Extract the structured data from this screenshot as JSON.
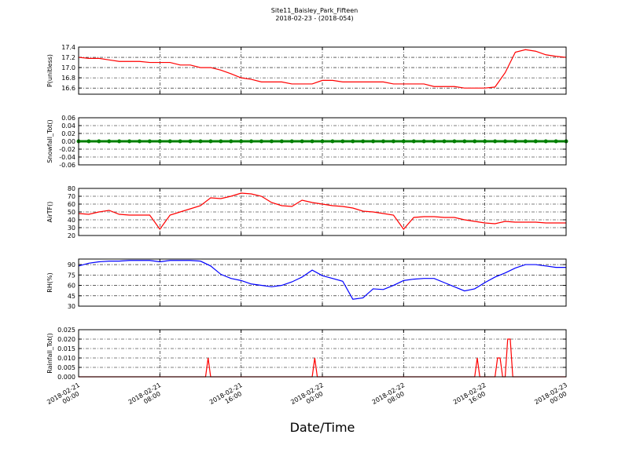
{
  "title": "Site11_Baisley_Park_Fifteen",
  "subtitle": "2018-02-23 - (2018-054)",
  "xlabel": "Date/Time",
  "chart_data": [
    {
      "type": "line",
      "ylabel": "P(unitless)",
      "color": "#ff0000",
      "xlim": [
        "2018-02-21 00:00",
        "2018-02-23 00:00"
      ],
      "xticks": [
        "2018-02-21 00:00",
        "2018-02-21 08:00",
        "2018-02-21 16:00",
        "2018-02-22 00:00",
        "2018-02-22 08:00",
        "2018-02-22 16:00",
        "2018-02-23 00:00"
      ],
      "ylim": [
        16.48,
        17.4
      ],
      "yticks": [
        16.6,
        16.8,
        {
          "value": 17,
          "label": "17.0"
        },
        17.2,
        17.4
      ],
      "grid": true,
      "x": [
        "2018-02-21 00:00",
        "2018-02-21 01:00",
        "2018-02-21 02:00",
        "2018-02-21 03:00",
        "2018-02-21 04:00",
        "2018-02-21 05:00",
        "2018-02-21 06:00",
        "2018-02-21 07:00",
        "2018-02-21 08:00",
        "2018-02-21 09:00",
        "2018-02-21 10:00",
        "2018-02-21 11:00",
        "2018-02-21 12:00",
        "2018-02-21 13:00",
        "2018-02-21 14:00",
        "2018-02-21 15:00",
        "2018-02-21 16:00",
        "2018-02-21 17:00",
        "2018-02-21 18:00",
        "2018-02-21 19:00",
        "2018-02-21 20:00",
        "2018-02-21 21:00",
        "2018-02-21 22:00",
        "2018-02-21 23:00",
        "2018-02-22 00:00",
        "2018-02-22 01:00",
        "2018-02-22 02:00",
        "2018-02-22 03:00",
        "2018-02-22 04:00",
        "2018-02-22 05:00",
        "2018-02-22 06:00",
        "2018-02-22 07:00",
        "2018-02-22 08:00",
        "2018-02-22 09:00",
        "2018-02-22 10:00",
        "2018-02-22 11:00",
        "2018-02-22 12:00",
        "2018-02-22 13:00",
        "2018-02-22 14:00",
        "2018-02-22 15:00",
        "2018-02-22 16:00",
        "2018-02-22 17:00",
        "2018-02-22 18:00",
        "2018-02-22 19:00",
        "2018-02-22 20:00",
        "2018-02-22 21:00",
        "2018-02-22 22:00",
        "2018-02-22 23:00",
        "2018-02-23 00:00"
      ],
      "values": [
        17.2,
        17.18,
        17.18,
        17.15,
        17.12,
        17.12,
        17.12,
        17.1,
        17.1,
        17.1,
        17.05,
        17.05,
        17.0,
        17.0,
        16.95,
        16.88,
        16.8,
        16.77,
        16.72,
        16.72,
        16.72,
        16.68,
        16.68,
        16.68,
        16.75,
        16.75,
        16.72,
        16.72,
        16.72,
        16.72,
        16.72,
        16.68,
        16.68,
        16.68,
        16.68,
        16.63,
        16.63,
        16.63,
        16.6,
        16.6,
        16.6,
        16.62,
        16.9,
        17.3,
        17.35,
        17.32,
        17.25,
        17.22,
        17.2
      ]
    },
    {
      "type": "line",
      "ylabel": "Snowfall_Tot()",
      "color": "#008000",
      "marker": true,
      "xlim": [
        "2018-02-21 00:00",
        "2018-02-23 00:00"
      ],
      "xticks": [
        "2018-02-21 00:00",
        "2018-02-21 08:00",
        "2018-02-21 16:00",
        "2018-02-22 00:00",
        "2018-02-22 08:00",
        "2018-02-22 16:00",
        "2018-02-23 00:00"
      ],
      "ylim": [
        -0.06,
        0.06
      ],
      "yticks": [
        -0.06,
        -0.04,
        -0.02,
        {
          "value": 0,
          "label": "0.00"
        },
        0.02,
        0.04,
        0.06
      ],
      "grid": true,
      "x": [
        "2018-02-21 00:00",
        "2018-02-21 01:00",
        "2018-02-21 02:00",
        "2018-02-21 03:00",
        "2018-02-21 04:00",
        "2018-02-21 05:00",
        "2018-02-21 06:00",
        "2018-02-21 07:00",
        "2018-02-21 08:00",
        "2018-02-21 09:00",
        "2018-02-21 10:00",
        "2018-02-21 11:00",
        "2018-02-21 12:00",
        "2018-02-21 13:00",
        "2018-02-21 14:00",
        "2018-02-21 15:00",
        "2018-02-21 16:00",
        "2018-02-21 17:00",
        "2018-02-21 18:00",
        "2018-02-21 19:00",
        "2018-02-21 20:00",
        "2018-02-21 21:00",
        "2018-02-21 22:00",
        "2018-02-21 23:00",
        "2018-02-22 00:00",
        "2018-02-22 01:00",
        "2018-02-22 02:00",
        "2018-02-22 03:00",
        "2018-02-22 04:00",
        "2018-02-22 05:00",
        "2018-02-22 06:00",
        "2018-02-22 07:00",
        "2018-02-22 08:00",
        "2018-02-22 09:00",
        "2018-02-22 10:00",
        "2018-02-22 11:00",
        "2018-02-22 12:00",
        "2018-02-22 13:00",
        "2018-02-22 14:00",
        "2018-02-22 15:00",
        "2018-02-22 16:00",
        "2018-02-22 17:00",
        "2018-02-22 18:00",
        "2018-02-22 19:00",
        "2018-02-22 20:00",
        "2018-02-22 21:00",
        "2018-02-22 22:00",
        "2018-02-22 23:00",
        "2018-02-23 00:00"
      ],
      "values": [
        0,
        0,
        0,
        0,
        0,
        0,
        0,
        0,
        0,
        0,
        0,
        0,
        0,
        0,
        0,
        0,
        0,
        0,
        0,
        0,
        0,
        0,
        0,
        0,
        0,
        0,
        0,
        0,
        0,
        0,
        0,
        0,
        0,
        0,
        0,
        0,
        0,
        0,
        0,
        0,
        0,
        0,
        0,
        0,
        0,
        0,
        0,
        0,
        0
      ]
    },
    {
      "type": "line",
      "ylabel": "AirTF()",
      "color": "#ff0000",
      "xlim": [
        "2018-02-21 00:00",
        "2018-02-23 00:00"
      ],
      "xticks": [
        "2018-02-21 00:00",
        "2018-02-21 08:00",
        "2018-02-21 16:00",
        "2018-02-22 00:00",
        "2018-02-22 08:00",
        "2018-02-22 16:00",
        "2018-02-23 00:00"
      ],
      "ylim": [
        20,
        80
      ],
      "yticks": [
        20,
        30,
        40,
        50,
        60,
        70,
        80
      ],
      "grid": true,
      "x": [
        "2018-02-21 00:00",
        "2018-02-21 01:00",
        "2018-02-21 02:00",
        "2018-02-21 03:00",
        "2018-02-21 04:00",
        "2018-02-21 05:00",
        "2018-02-21 06:00",
        "2018-02-21 07:00",
        "2018-02-21 08:00",
        "2018-02-21 09:00",
        "2018-02-21 10:00",
        "2018-02-21 11:00",
        "2018-02-21 12:00",
        "2018-02-21 13:00",
        "2018-02-21 14:00",
        "2018-02-21 15:00",
        "2018-02-21 16:00",
        "2018-02-21 17:00",
        "2018-02-21 18:00",
        "2018-02-21 19:00",
        "2018-02-21 20:00",
        "2018-02-21 21:00",
        "2018-02-21 22:00",
        "2018-02-21 23:00",
        "2018-02-22 00:00",
        "2018-02-22 01:00",
        "2018-02-22 02:00",
        "2018-02-22 03:00",
        "2018-02-22 04:00",
        "2018-02-22 05:00",
        "2018-02-22 06:00",
        "2018-02-22 07:00",
        "2018-02-22 08:00",
        "2018-02-22 09:00",
        "2018-02-22 10:00",
        "2018-02-22 11:00",
        "2018-02-22 12:00",
        "2018-02-22 13:00",
        "2018-02-22 14:00",
        "2018-02-22 15:00",
        "2018-02-22 16:00",
        "2018-02-22 17:00",
        "2018-02-22 18:00",
        "2018-02-22 19:00",
        "2018-02-22 20:00",
        "2018-02-22 21:00",
        "2018-02-22 22:00",
        "2018-02-22 23:00",
        "2018-02-23 00:00"
      ],
      "values": [
        48,
        47,
        50,
        52,
        47,
        46,
        46,
        46,
        28,
        46,
        50,
        54,
        58,
        68,
        67,
        70,
        74,
        73,
        70,
        62,
        58,
        57,
        65,
        62,
        60,
        58,
        57,
        55,
        51,
        50,
        48,
        46,
        28,
        43,
        44,
        44,
        43,
        43,
        40,
        38,
        36,
        35,
        38,
        37,
        37,
        37,
        36,
        36,
        36
      ]
    },
    {
      "type": "line",
      "ylabel": "RH(%)",
      "color": "#0000ff",
      "xlim": [
        "2018-02-21 00:00",
        "2018-02-23 00:00"
      ],
      "xticks": [
        "2018-02-21 00:00",
        "2018-02-21 08:00",
        "2018-02-21 16:00",
        "2018-02-22 00:00",
        "2018-02-22 08:00",
        "2018-02-22 16:00",
        "2018-02-23 00:00"
      ],
      "ylim": [
        30,
        98
      ],
      "yticks": [
        30,
        45,
        60,
        75,
        90
      ],
      "grid": true,
      "x": [
        "2018-02-21 00:00",
        "2018-02-21 01:00",
        "2018-02-21 02:00",
        "2018-02-21 03:00",
        "2018-02-21 04:00",
        "2018-02-21 05:00",
        "2018-02-21 06:00",
        "2018-02-21 07:00",
        "2018-02-21 08:00",
        "2018-02-21 09:00",
        "2018-02-21 10:00",
        "2018-02-21 11:00",
        "2018-02-21 12:00",
        "2018-02-21 13:00",
        "2018-02-21 14:00",
        "2018-02-21 15:00",
        "2018-02-21 16:00",
        "2018-02-21 17:00",
        "2018-02-21 18:00",
        "2018-02-21 19:00",
        "2018-02-21 20:00",
        "2018-02-21 21:00",
        "2018-02-21 22:00",
        "2018-02-21 23:00",
        "2018-02-22 00:00",
        "2018-02-22 01:00",
        "2018-02-22 02:00",
        "2018-02-22 03:00",
        "2018-02-22 04:00",
        "2018-02-22 05:00",
        "2018-02-22 06:00",
        "2018-02-22 07:00",
        "2018-02-22 08:00",
        "2018-02-22 09:00",
        "2018-02-22 10:00",
        "2018-02-22 11:00",
        "2018-02-22 12:00",
        "2018-02-22 13:00",
        "2018-02-22 14:00",
        "2018-02-22 15:00",
        "2018-02-22 16:00",
        "2018-02-22 17:00",
        "2018-02-22 18:00",
        "2018-02-22 19:00",
        "2018-02-22 20:00",
        "2018-02-22 21:00",
        "2018-02-22 22:00",
        "2018-02-22 23:00",
        "2018-02-23 00:00"
      ],
      "values": [
        88,
        92,
        94,
        95,
        95,
        96,
        96,
        96,
        94,
        96,
        96,
        96,
        95,
        88,
        76,
        70,
        67,
        62,
        60,
        58,
        60,
        65,
        72,
        82,
        74,
        70,
        66,
        40,
        42,
        55,
        54,
        60,
        67,
        69,
        70,
        70,
        64,
        58,
        52,
        55,
        64,
        72,
        78,
        85,
        90,
        90,
        88,
        86,
        86
      ]
    },
    {
      "type": "line",
      "ylabel": "Rainfall_Tot()",
      "color": "#ff0000",
      "xlim": [
        "2018-02-21 00:00",
        "2018-02-23 00:00"
      ],
      "xticks": [
        "2018-02-21 00:00",
        "2018-02-21 08:00",
        "2018-02-21 16:00",
        "2018-02-22 00:00",
        "2018-02-22 08:00",
        "2018-02-22 16:00",
        "2018-02-23 00:00"
      ],
      "xtick_labels": true,
      "ylim": [
        0,
        0.025
      ],
      "yticks": [
        {
          "value": 0,
          "label": "0.000"
        },
        {
          "value": 0.005,
          "label": "0.005"
        },
        {
          "value": 0.01,
          "label": "0.010"
        },
        {
          "value": 0.015,
          "label": "0.015"
        },
        {
          "value": 0.02,
          "label": "0.020"
        },
        {
          "value": 0.025,
          "label": "0.025"
        }
      ],
      "grid": true,
      "x": [
        "2018-02-21 00:00",
        "2018-02-21 12:30",
        "2018-02-21 12:45",
        "2018-02-21 13:00",
        "2018-02-21 23:00",
        "2018-02-21 23:15",
        "2018-02-21 23:30",
        "2018-02-22 15:00",
        "2018-02-22 15:15",
        "2018-02-22 15:30",
        "2018-02-22 17:00",
        "2018-02-22 17:15",
        "2018-02-22 17:30",
        "2018-02-22 17:45",
        "2018-02-22 18:00",
        "2018-02-22 18:15",
        "2018-02-22 18:30",
        "2018-02-22 18:45",
        "2018-02-23 00:00"
      ],
      "values": [
        0,
        0,
        0.01,
        0,
        0,
        0.01,
        0,
        0,
        0.01,
        0,
        0,
        0.01,
        0.01,
        0,
        0,
        0.02,
        0.02,
        0,
        0
      ]
    }
  ]
}
